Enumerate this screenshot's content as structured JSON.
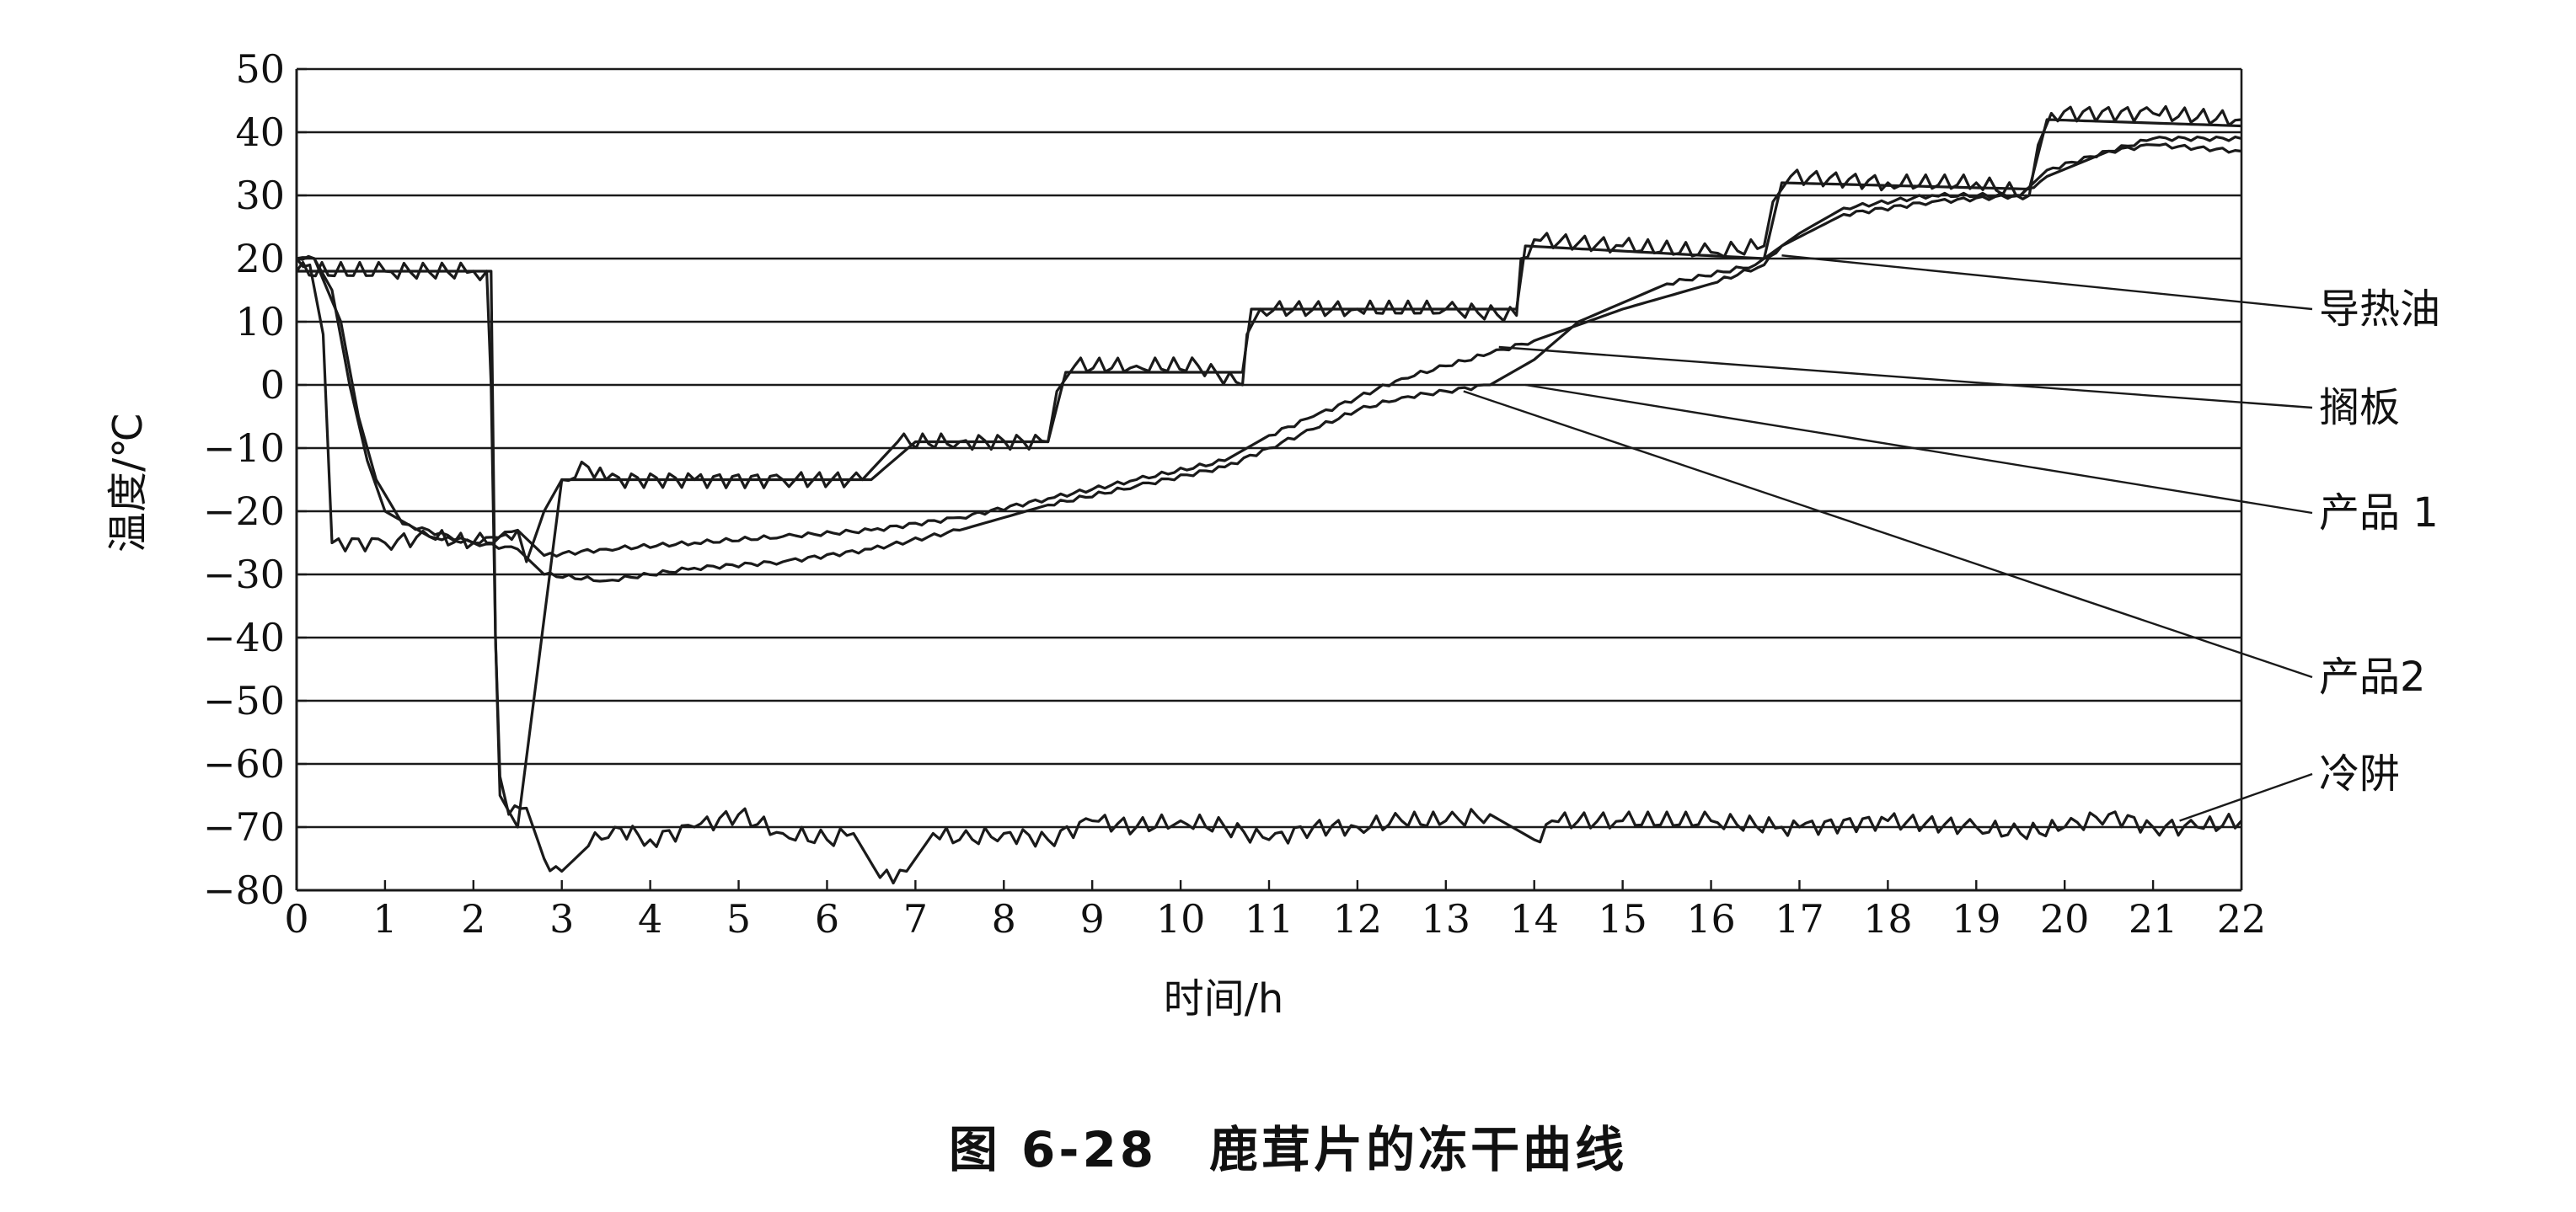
{
  "figure": {
    "caption": "图 6-28　鹿茸片的冻干曲线"
  },
  "chart_data": {
    "type": "line",
    "title": "",
    "xlabel": "时间/h",
    "ylabel": "温度/℃",
    "xlim": [
      0,
      22
    ],
    "ylim": [
      -80,
      50
    ],
    "xticks": [
      0,
      1,
      2,
      3,
      4,
      5,
      6,
      7,
      8,
      9,
      10,
      11,
      12,
      13,
      14,
      15,
      16,
      17,
      18,
      19,
      20,
      21,
      22
    ],
    "yticks": [
      50,
      40,
      30,
      20,
      10,
      0,
      -10,
      -20,
      -30,
      -40,
      -50,
      -60,
      -70,
      -80
    ],
    "ytick_labels": [
      "50",
      "40",
      "30",
      "20",
      "10",
      "0",
      "−10",
      "−20",
      "−30",
      "−40",
      "−50",
      "−60",
      "−70",
      "−80"
    ],
    "grid": "horizontal",
    "line_color": "#1a1a1a",
    "series": [
      {
        "name": "导热油",
        "points": [
          [
            0,
            20
          ],
          [
            0.15,
            19
          ],
          [
            0.3,
            8
          ],
          [
            0.4,
            -25
          ],
          [
            1.0,
            -25
          ],
          [
            1.5,
            -24
          ],
          [
            2.0,
            -25
          ],
          [
            2.3,
            -24
          ],
          [
            2.5,
            -23
          ],
          [
            2.6,
            -28
          ],
          [
            2.8,
            -20
          ],
          [
            3.0,
            -15
          ],
          [
            3.3,
            -13
          ],
          [
            3.5,
            -15
          ],
          [
            4.5,
            -15
          ],
          [
            5.5,
            -15
          ],
          [
            6.4,
            -15
          ],
          [
            6.8,
            -9
          ],
          [
            7.5,
            -9
          ],
          [
            8.5,
            -9
          ],
          [
            8.6,
            -1
          ],
          [
            8.8,
            3
          ],
          [
            9.5,
            3
          ],
          [
            10.2,
            3
          ],
          [
            10.7,
            0
          ],
          [
            10.75,
            8
          ],
          [
            10.9,
            12
          ],
          [
            12.0,
            12
          ],
          [
            13.0,
            12
          ],
          [
            13.8,
            11
          ],
          [
            13.85,
            20
          ],
          [
            14.0,
            23
          ],
          [
            15.0,
            22
          ],
          [
            16.0,
            21
          ],
          [
            16.6,
            22
          ],
          [
            16.7,
            29
          ],
          [
            16.9,
            33
          ],
          [
            18.0,
            32
          ],
          [
            19.0,
            32
          ],
          [
            19.6,
            30
          ],
          [
            19.7,
            38
          ],
          [
            19.85,
            43
          ],
          [
            21.0,
            43
          ],
          [
            22.0,
            42
          ]
        ]
      },
      {
        "name": "搁板",
        "points": [
          [
            0,
            18
          ],
          [
            0.5,
            18
          ],
          [
            1.5,
            18
          ],
          [
            2.0,
            18
          ],
          [
            2.2,
            18
          ],
          [
            2.25,
            -40
          ],
          [
            2.3,
            -65
          ],
          [
            2.5,
            -70
          ],
          [
            3.0,
            -15
          ],
          [
            4.0,
            -15
          ],
          [
            5.0,
            -15
          ],
          [
            6.0,
            -15
          ],
          [
            6.5,
            -15
          ],
          [
            7.0,
            -9
          ],
          [
            8.5,
            -9
          ],
          [
            8.7,
            2
          ],
          [
            10.7,
            2
          ],
          [
            10.8,
            12
          ],
          [
            13.8,
            12
          ],
          [
            13.9,
            22
          ],
          [
            16.6,
            20
          ],
          [
            16.8,
            32
          ],
          [
            19.6,
            31
          ],
          [
            19.8,
            42
          ],
          [
            22.0,
            41
          ]
        ]
      },
      {
        "name": "产品 1",
        "points": [
          [
            0,
            20
          ],
          [
            0.2,
            20
          ],
          [
            0.4,
            15
          ],
          [
            0.6,
            0
          ],
          [
            0.8,
            -12
          ],
          [
            1.0,
            -20
          ],
          [
            1.5,
            -24
          ],
          [
            2.0,
            -25
          ],
          [
            2.5,
            -23
          ],
          [
            2.8,
            -27
          ],
          [
            3.5,
            -26
          ],
          [
            4.5,
            -25
          ],
          [
            5.5,
            -24
          ],
          [
            6.5,
            -23
          ],
          [
            7.5,
            -21
          ],
          [
            8.5,
            -18
          ],
          [
            9.5,
            -15
          ],
          [
            10.5,
            -12
          ],
          [
            11.0,
            -8
          ],
          [
            11.5,
            -5
          ],
          [
            12.0,
            -2
          ],
          [
            12.5,
            1
          ],
          [
            13.0,
            3
          ],
          [
            13.5,
            5
          ],
          [
            14.0,
            7
          ],
          [
            15.0,
            12
          ],
          [
            16.0,
            16
          ],
          [
            16.6,
            19
          ],
          [
            16.8,
            22
          ],
          [
            17.5,
            27
          ],
          [
            18.5,
            29
          ],
          [
            19.5,
            30
          ],
          [
            19.8,
            33
          ],
          [
            20.5,
            37
          ],
          [
            21.0,
            39
          ],
          [
            22.0,
            39
          ]
        ]
      },
      {
        "name": "产品2",
        "points": [
          [
            0,
            20
          ],
          [
            0.2,
            20
          ],
          [
            0.5,
            10
          ],
          [
            0.7,
            -5
          ],
          [
            0.9,
            -15
          ],
          [
            1.2,
            -22
          ],
          [
            2.0,
            -25
          ],
          [
            2.5,
            -26
          ],
          [
            2.8,
            -30
          ],
          [
            3.5,
            -31
          ],
          [
            4.5,
            -29
          ],
          [
            5.5,
            -28
          ],
          [
            6.5,
            -26
          ],
          [
            7.5,
            -23
          ],
          [
            8.5,
            -19
          ],
          [
            9.5,
            -16
          ],
          [
            10.5,
            -13
          ],
          [
            11.0,
            -10
          ],
          [
            11.5,
            -7
          ],
          [
            12.0,
            -4
          ],
          [
            12.5,
            -2
          ],
          [
            13.0,
            -1
          ],
          [
            13.5,
            0
          ],
          [
            14.0,
            4
          ],
          [
            14.5,
            10
          ],
          [
            15.5,
            16
          ],
          [
            16.5,
            19
          ],
          [
            17.0,
            24
          ],
          [
            17.5,
            28
          ],
          [
            18.5,
            30
          ],
          [
            19.5,
            30
          ],
          [
            19.8,
            34
          ],
          [
            20.5,
            37
          ],
          [
            21.0,
            38
          ],
          [
            22.0,
            37
          ]
        ]
      },
      {
        "name": "冷阱",
        "points": [
          [
            0,
            18
          ],
          [
            1.0,
            18
          ],
          [
            2.0,
            18
          ],
          [
            2.15,
            18
          ],
          [
            2.2,
            0
          ],
          [
            2.25,
            -40
          ],
          [
            2.3,
            -62
          ],
          [
            2.4,
            -68
          ],
          [
            2.6,
            -67
          ],
          [
            2.8,
            -75
          ],
          [
            3.0,
            -77
          ],
          [
            3.3,
            -73
          ],
          [
            3.6,
            -70
          ],
          [
            4.0,
            -72
          ],
          [
            4.5,
            -70
          ],
          [
            5.0,
            -68
          ],
          [
            5.5,
            -71
          ],
          [
            6.0,
            -72
          ],
          [
            6.3,
            -71
          ],
          [
            6.6,
            -78
          ],
          [
            6.9,
            -77
          ],
          [
            7.2,
            -71
          ],
          [
            7.5,
            -72
          ],
          [
            8.0,
            -71
          ],
          [
            8.5,
            -72
          ],
          [
            9.0,
            -69
          ],
          [
            9.5,
            -70
          ],
          [
            10.0,
            -69
          ],
          [
            10.5,
            -70
          ],
          [
            11.0,
            -72
          ],
          [
            11.5,
            -70
          ],
          [
            12.0,
            -70
          ],
          [
            12.5,
            -69
          ],
          [
            13.0,
            -69
          ],
          [
            13.5,
            -68
          ],
          [
            14.0,
            -72
          ],
          [
            14.2,
            -69
          ],
          [
            15.0,
            -69
          ],
          [
            16.0,
            -69
          ],
          [
            16.8,
            -70
          ],
          [
            17.0,
            -70
          ],
          [
            18.0,
            -69
          ],
          [
            19.0,
            -70
          ],
          [
            19.5,
            -71
          ],
          [
            20.0,
            -70
          ],
          [
            20.5,
            -68
          ],
          [
            21.0,
            -70
          ],
          [
            21.5,
            -70
          ],
          [
            22.0,
            -69
          ]
        ]
      }
    ],
    "annotations": [
      {
        "text": "导热油",
        "target": [
          16.8,
          20.5
        ]
      },
      {
        "text": "搁板",
        "target": [
          13.6,
          6
        ]
      },
      {
        "text": "产品 1",
        "target": [
          13.9,
          0
        ]
      },
      {
        "text": "产品2",
        "target": [
          13.2,
          -1
        ]
      },
      {
        "text": "冷阱",
        "target": [
          21.3,
          -69
        ]
      }
    ]
  }
}
